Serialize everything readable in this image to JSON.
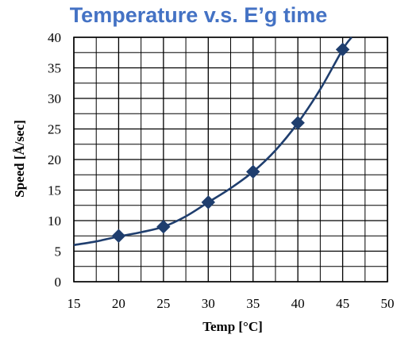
{
  "colors": {
    "title": "#4472c4",
    "series": "#1f3e6e",
    "grid": "#000000",
    "background": "#ffffff"
  },
  "chart_data": {
    "type": "line",
    "title": "Temperature v.s. E’g time",
    "xlabel": "Temp  [°C]",
    "ylabel": "Speed [Å/sec]",
    "xlim": [
      15,
      50
    ],
    "ylim": [
      0,
      40
    ],
    "x_ticks": [
      15,
      20,
      25,
      30,
      35,
      40,
      45,
      50
    ],
    "y_ticks": [
      0,
      5,
      10,
      15,
      20,
      25,
      30,
      35,
      40
    ],
    "grid": true,
    "minor_grid": true,
    "marker": "diamond",
    "smooth": true,
    "series": [
      {
        "x": [
          20,
          25,
          30,
          35,
          40,
          45
        ],
        "y": [
          7.5,
          9,
          13,
          18,
          26,
          38
        ]
      }
    ],
    "trend_curve": {
      "x": [
        15,
        17.5,
        20,
        22.5,
        25,
        27.5,
        30,
        32.5,
        35,
        37.5,
        40,
        42.5,
        45,
        46
      ],
      "y": [
        6,
        6.6,
        7.4,
        8.1,
        9.0,
        10.7,
        13.0,
        15.3,
        18.0,
        21.5,
        26.0,
        31.5,
        38.0,
        40
      ]
    }
  }
}
